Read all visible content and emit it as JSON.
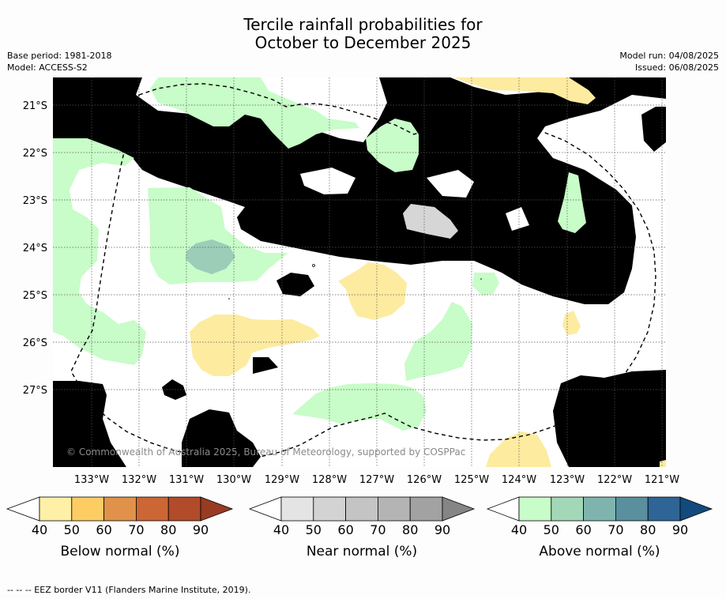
{
  "title_line1": "Tercile rainfall probabilities for",
  "title_line2": "October to December 2025",
  "base_period": "Base period: 1981-2018",
  "model": "Model: ACCESS-S2",
  "model_run": "Model run: 04/08/2025",
  "issued": "Issued: 06/08/2025",
  "copyright": "© Commonwealth of Australia 2025, Bureau of Meteorology, supported by COSPPac",
  "footnote": "--  --  -- EEZ border V11 (Flanders Marine Institute, 2019).",
  "lat_labels": [
    "21°S",
    "22°S",
    "23°S",
    "24°S",
    "25°S",
    "26°S",
    "27°S"
  ],
  "lon_labels": [
    "133°W",
    "132°W",
    "131°W",
    "130°W",
    "129°W",
    "128°W",
    "127°W",
    "126°W",
    "125°W",
    "124°W",
    "123°W",
    "122°W",
    "121°W"
  ],
  "colorbars": [
    {
      "name": "below",
      "label": "Below normal (%)",
      "ticks": [
        "40",
        "50",
        "60",
        "70",
        "80",
        "90"
      ],
      "colors": [
        "#ffffff",
        "#fff0a8",
        "#fdcd64",
        "#e0924a",
        "#cc6634",
        "#b14b29",
        "#983b22"
      ]
    },
    {
      "name": "near",
      "label": "Near normal (%)",
      "ticks": [
        "40",
        "50",
        "60",
        "70",
        "80",
        "90"
      ],
      "colors": [
        "#ffffff",
        "#e4e4e4",
        "#d3d3d3",
        "#c4c4c4",
        "#b4b4b4",
        "#a2a2a2",
        "#858585"
      ]
    },
    {
      "name": "above",
      "label": "Above normal (%)",
      "ticks": [
        "40",
        "50",
        "60",
        "70",
        "80",
        "90"
      ],
      "colors": [
        "#ffffff",
        "#c8fcc8",
        "#a2d8b8",
        "#7fb4ae",
        "#5a8f9e",
        "#2f6496",
        "#134a7e"
      ]
    }
  ],
  "map_colors": {
    "near_normal": "#e4e4e4",
    "near_normal_dark": "#d6d6d6",
    "above_normal": "#c8fcc8",
    "above_normal_dark": "#9ccdb8",
    "below_normal": "#fdeba0"
  }
}
